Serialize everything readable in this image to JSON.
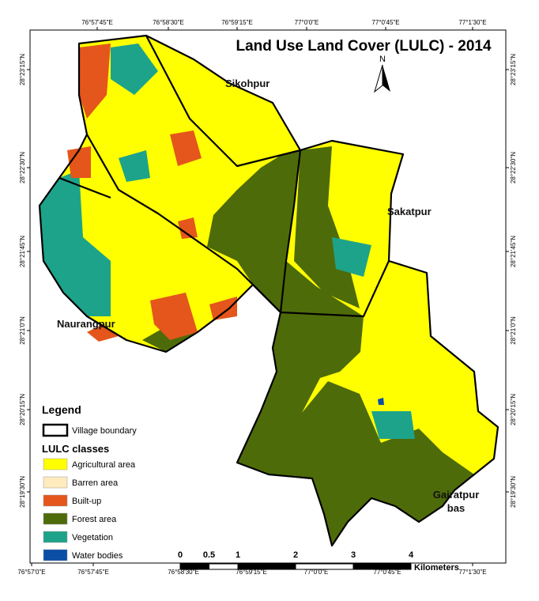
{
  "title": "Land Use Land Cover (LULC) - 2014",
  "north": "N",
  "graticule": {
    "top": [
      "76°57'45\"E",
      "76°58'30\"E",
      "76°59'15\"E",
      "77°0'0\"E",
      "77°0'45\"E",
      "77°1'30\"E"
    ],
    "bottom": [
      "76°57'0\"E",
      "76°57'45\"E",
      "76°58'30\"E",
      "76°59'15\"E",
      "77°0'0\"E",
      "77°0'45\"E",
      "77°1'30\"E"
    ],
    "left": [
      "28°23'15\"N",
      "28°22'30\"N",
      "28°21'45\"N",
      "28°21'0\"N",
      "28°20'15\"N",
      "28°19'30\"N"
    ],
    "right": [
      "28°23'15\"N",
      "28°22'30\"N",
      "28°21'45\"N",
      "28°21'0\"N",
      "28°20'15\"N",
      "28°19'30\"N"
    ]
  },
  "villages": {
    "sikohpur": "Sikohpur",
    "sakatpur": "Sakatpur",
    "naurangpur": "Naurangpur",
    "gairatpur": [
      "Gairatpur",
      "bas"
    ]
  },
  "legend": {
    "title": "Legend",
    "boundary": "Village boundary",
    "classes_title": "LULC classes",
    "classes": [
      {
        "name": "Agricultural area",
        "color": "#ffff00"
      },
      {
        "name": "Barren area",
        "color": "#ffebbe"
      },
      {
        "name": "Built-up",
        "color": "#e4561b"
      },
      {
        "name": "Forest area",
        "color": "#4e6b0a"
      },
      {
        "name": "Vegetation",
        "color": "#1da38a"
      },
      {
        "name": "Water bodies",
        "color": "#0b4ea6"
      }
    ]
  },
  "scale": {
    "ticks": [
      0,
      0.5,
      1,
      2,
      3,
      4
    ],
    "unit": "Kilometers"
  }
}
